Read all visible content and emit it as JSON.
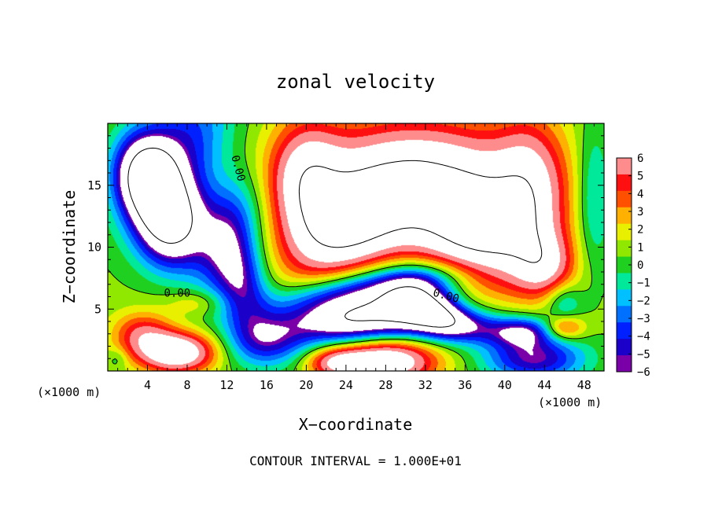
{
  "chart_data": {
    "type": "heatmap",
    "title": "zonal velocity",
    "xlabel": "X−coordinate",
    "ylabel": "Z−coordinate",
    "x_unit_label": "(×1000 m)",
    "x_unit_label_right": "(×1000 m)",
    "footer": "CONTOUR INTERVAL = 1.000E+01",
    "xlim": [
      0,
      50
    ],
    "ylim": [
      0,
      20
    ],
    "x_ticks": [
      "4",
      "8",
      "12",
      "16",
      "20",
      "24",
      "28",
      "32",
      "36",
      "40",
      "44",
      "48"
    ],
    "y_ticks": [
      "5",
      "10",
      "15"
    ],
    "colorbar_ticks": [
      "6",
      "5",
      "4",
      "3",
      "2",
      "1",
      "0",
      "−1",
      "−2",
      "−3",
      "−4",
      "−5",
      "−6"
    ],
    "colorbar_range": [
      -6,
      6
    ],
    "contour_labels": [
      {
        "text": "0.00",
        "x": 12.8,
        "z": 16.3
      },
      {
        "text": "0.00",
        "x": 7.0,
        "z": 6.0
      },
      {
        "text": "0.00",
        "x": 34.0,
        "z": 5.8
      }
    ],
    "colors": {
      "neg6": "#7a00a8",
      "neg5": "#1a00c8",
      "neg4": "#0020ff",
      "neg3": "#0070ff",
      "neg2": "#00c0ff",
      "neg1": "#00e89a",
      "zero": "#20d020",
      "pos1": "#90e800",
      "pos2": "#e8f000",
      "pos3": "#ffb000",
      "pos4": "#ff5000",
      "pos5": "#ff1010",
      "pos6": "#ff8c8c"
    },
    "fields": [
      {
        "feature": "background",
        "value": 0.3
      },
      {
        "feature": "upper-left jet",
        "value": -5.0
      },
      {
        "feature": "upper-left purple core",
        "value": -6.5
      },
      {
        "feature": "upper-left white eddy",
        "value": -8.0
      },
      {
        "feature": "central strong positive region",
        "value": 8.0
      },
      {
        "feature": "right red arc",
        "value": 4.5
      },
      {
        "feature": "right blue band",
        "value": -2.5
      },
      {
        "feature": "lower diagonal negative jet",
        "value": -4.5
      },
      {
        "feature": "lower white negative core",
        "value": -8.0
      },
      {
        "feature": "lower-right purple core",
        "value": -6.0
      },
      {
        "feature": "bottom positive region",
        "value": 4.5
      },
      {
        "feature": "bottom-left white blob",
        "value": 8.0
      }
    ]
  }
}
